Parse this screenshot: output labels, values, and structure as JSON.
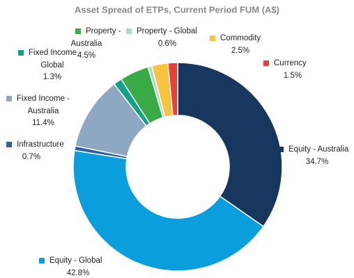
{
  "chart_data": {
    "type": "donut",
    "title": "Asset Spread of ETPs, Current Period FUM (A$)",
    "categories": [
      "Equity - Australia",
      "Equity - Global",
      "Infrastructure",
      "Fixed Income - Australia",
      "Fixed Income - Global",
      "Property - Australia",
      "Property - Global",
      "Commodity",
      "Currency"
    ],
    "values": [
      34.7,
      42.8,
      0.7,
      11.4,
      1.3,
      4.5,
      0.6,
      2.5,
      1.5
    ],
    "value_labels": [
      "34.7%",
      "42.8%",
      "0.7%",
      "11.4%",
      "1.3%",
      "4.5%",
      "0.6%",
      "2.5%",
      "1.5%"
    ],
    "colors": [
      "#17375e",
      "#0a9fdc",
      "#2e5fa3",
      "#8ea7c2",
      "#15a08a",
      "#3aaa47",
      "#a9dccb",
      "#f8c33f",
      "#e8413a"
    ]
  }
}
